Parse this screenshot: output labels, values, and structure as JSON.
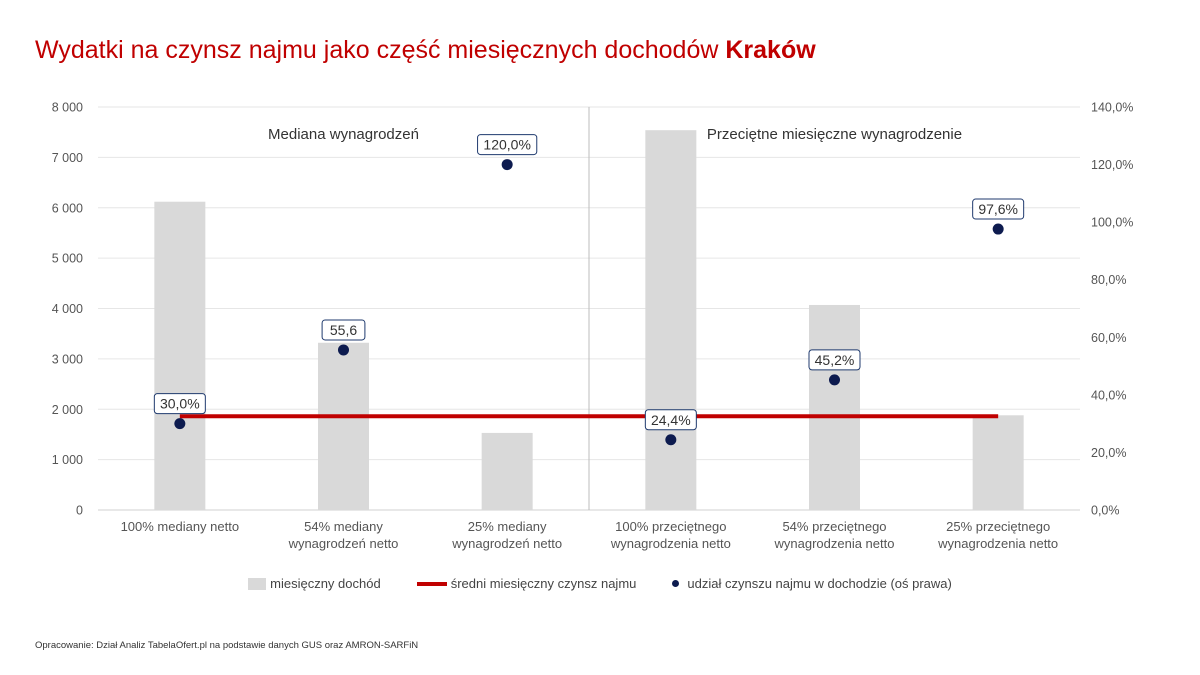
{
  "header": {
    "title_main": "Wydatki na czynsz najmu jako część miesięcznych dochodów",
    "title_city": "Kraków"
  },
  "colors": {
    "title": "#c00000",
    "bar": "#d9d9d9",
    "rent_line": "#c00000",
    "dot": "#0d1b4f",
    "label_border": "#1f3a6e"
  },
  "chart_data": {
    "type": "bar",
    "categories": [
      [
        "100% mediany netto"
      ],
      [
        "54% mediany",
        "wynagrodzeń netto"
      ],
      [
        "25% mediany",
        "wynagrodzeń netto"
      ],
      [
        "100% przeciętnego",
        "wynagrodzenia netto"
      ],
      [
        "54% przeciętnego",
        "wynagrodzenia netto"
      ],
      [
        "25% przeciętnego",
        "wynagrodzenia netto"
      ]
    ],
    "section_labels": [
      "Mediana wynagrodzeń",
      "Przeciętne miesięczne wynagrodzenie"
    ],
    "series": [
      {
        "name": "miesięczny dochód",
        "type": "bar",
        "axis": "left",
        "values": [
          6120,
          3320,
          1530,
          7540,
          4070,
          1880
        ]
      },
      {
        "name": "średni miesięczny czynsz najmu",
        "type": "line",
        "axis": "left",
        "values": [
          1860,
          1860,
          1860,
          1860,
          1860,
          1860
        ]
      },
      {
        "name": "udział czynszu najmu w dochodzie (oś prawa)",
        "type": "scatter",
        "axis": "right",
        "values": [
          30.0,
          55.6,
          120.0,
          24.4,
          45.2,
          97.6
        ],
        "labels": [
          "30,0%",
          "55,6",
          "120,0%",
          "24,4%",
          "45,2%",
          "97,6%"
        ]
      }
    ],
    "y_left": {
      "min": 0,
      "max": 8000,
      "step": 1000,
      "tick_labels": [
        "0",
        "1 000",
        "2 000",
        "3 000",
        "4 000",
        "5 000",
        "6 000",
        "7 000",
        "8 000"
      ]
    },
    "y_right": {
      "min": 0,
      "max": 140,
      "step": 20,
      "tick_labels": [
        "0,0%",
        "20,0%",
        "40,0%",
        "60,0%",
        "80,0%",
        "100,0%",
        "120,0%",
        "140,0%"
      ]
    },
    "grid": true,
    "legend_position": "bottom"
  },
  "footer": {
    "source": "Opracowanie: Dział Analiz TabelaOfert.pl na podstawie danych GUS oraz AMRON-SARFiN"
  }
}
